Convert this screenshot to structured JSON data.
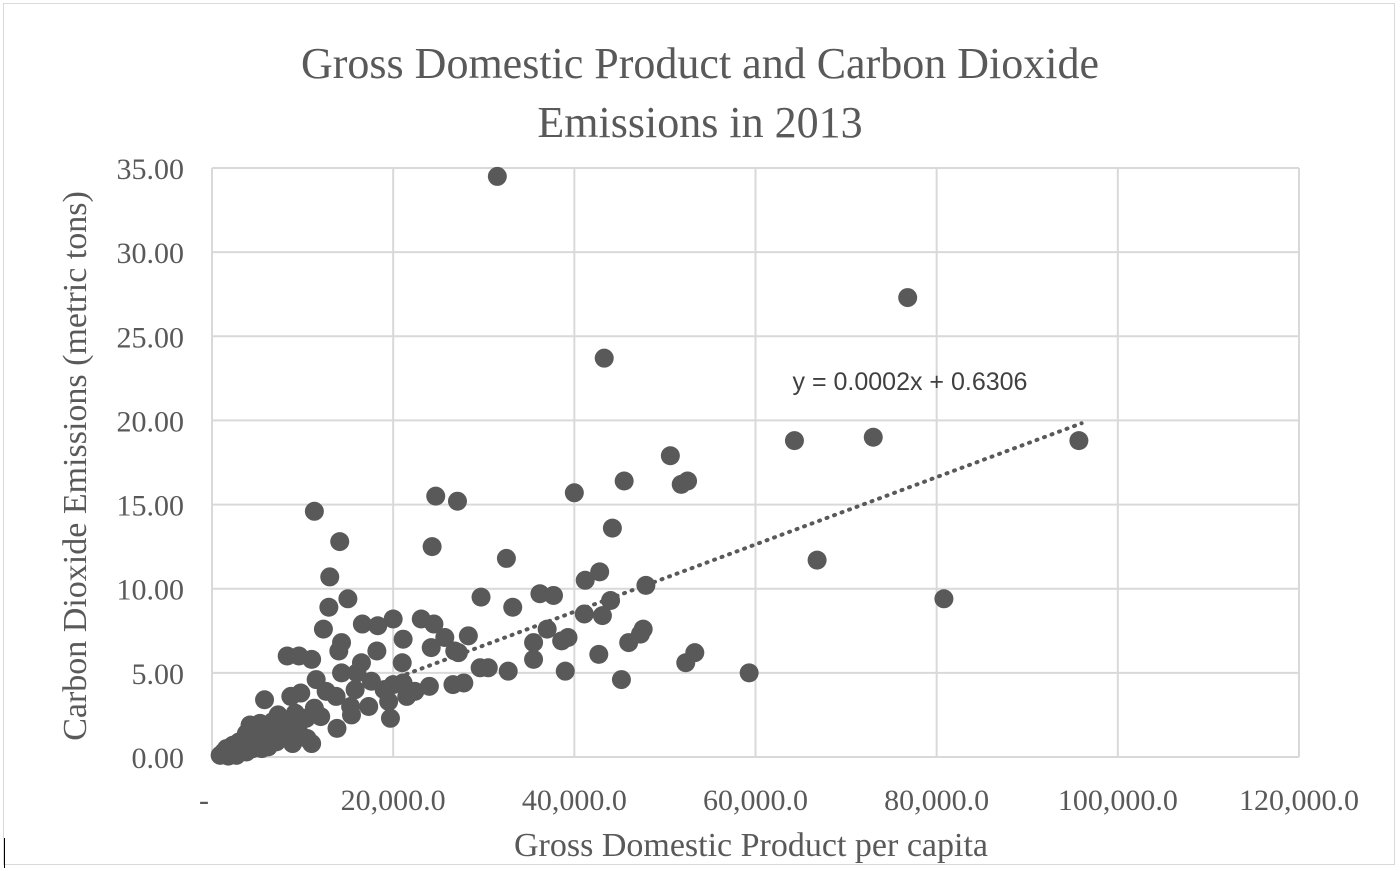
{
  "chart_data": {
    "type": "scatter",
    "title_line1": "Gross Domestic Product and Carbon Dioxide",
    "title_line2": "Emissions in 2013",
    "xlabel": "Gross Domestic Product per capita",
    "ylabel": "Carbon Dioxide Emissions (metric tons)",
    "xlim": [
      0,
      120000
    ],
    "ylim": [
      0,
      35
    ],
    "x_ticks": [
      0,
      20000,
      40000,
      60000,
      80000,
      100000,
      120000
    ],
    "x_tick_labels": [
      "-",
      "20,000.0",
      "40,000.0",
      "60,000.0",
      "80,000.0",
      "100,000.0",
      "120,000.0"
    ],
    "y_ticks": [
      0,
      5,
      10,
      15,
      20,
      25,
      30,
      35
    ],
    "y_tick_labels": [
      "0.00",
      "5.00",
      "10.00",
      "15.00",
      "20.00",
      "25.00",
      "30.00",
      "35.00"
    ],
    "grid": true,
    "legend": "none",
    "marker_color": "#595959",
    "trendline": {
      "equation": "y = 0.0002x + 0.6306",
      "slope": 0.0002,
      "intercept": 0.6306,
      "x_range": [
        19000,
        96000
      ],
      "style": "dotted"
    },
    "points": [
      [
        31500,
        34.5
      ],
      [
        76800,
        27.3
      ],
      [
        43300,
        23.7
      ],
      [
        95700,
        18.8
      ],
      [
        64300,
        18.8
      ],
      [
        73000,
        19.0
      ],
      [
        50600,
        17.9
      ],
      [
        45500,
        16.4
      ],
      [
        52500,
        16.4
      ],
      [
        51800,
        16.2
      ],
      [
        40000,
        15.7
      ],
      [
        24700,
        15.5
      ],
      [
        27100,
        15.2
      ],
      [
        11300,
        14.6
      ],
      [
        44200,
        13.6
      ],
      [
        14100,
        12.8
      ],
      [
        24300,
        12.5
      ],
      [
        32500,
        11.8
      ],
      [
        66800,
        11.7
      ],
      [
        42800,
        11.0
      ],
      [
        41200,
        10.5
      ],
      [
        13000,
        10.7
      ],
      [
        47900,
        10.2
      ],
      [
        36200,
        9.7
      ],
      [
        37700,
        9.6
      ],
      [
        80800,
        9.4
      ],
      [
        15000,
        9.4
      ],
      [
        29700,
        9.5
      ],
      [
        44000,
        9.3
      ],
      [
        12900,
        8.9
      ],
      [
        33200,
        8.9
      ],
      [
        43100,
        8.4
      ],
      [
        41100,
        8.5
      ],
      [
        20000,
        8.2
      ],
      [
        23100,
        8.2
      ],
      [
        24500,
        7.9
      ],
      [
        16600,
        7.9
      ],
      [
        18300,
        7.8
      ],
      [
        12300,
        7.6
      ],
      [
        47600,
        7.6
      ],
      [
        47300,
        7.3
      ],
      [
        37000,
        7.6
      ],
      [
        28300,
        7.2
      ],
      [
        21100,
        7.0
      ],
      [
        25700,
        7.1
      ],
      [
        39300,
        7.1
      ],
      [
        38600,
        6.9
      ],
      [
        35500,
        6.8
      ],
      [
        14300,
        6.8
      ],
      [
        46000,
        6.8
      ],
      [
        24200,
        6.5
      ],
      [
        18200,
        6.3
      ],
      [
        26800,
        6.3
      ],
      [
        27200,
        6.2
      ],
      [
        14000,
        6.3
      ],
      [
        53300,
        6.2
      ],
      [
        42700,
        6.1
      ],
      [
        9600,
        6.0
      ],
      [
        8300,
        6.0
      ],
      [
        11000,
        5.8
      ],
      [
        16500,
        5.6
      ],
      [
        21000,
        5.6
      ],
      [
        52300,
        5.6
      ],
      [
        35500,
        5.8
      ],
      [
        29600,
        5.3
      ],
      [
        30500,
        5.3
      ],
      [
        32700,
        5.1
      ],
      [
        39000,
        5.1
      ],
      [
        59300,
        5.0
      ],
      [
        16000,
        5.0
      ],
      [
        14300,
        5.0
      ],
      [
        11500,
        4.6
      ],
      [
        45200,
        4.6
      ],
      [
        21100,
        4.4
      ],
      [
        20000,
        4.3
      ],
      [
        17600,
        4.5
      ],
      [
        26600,
        4.3
      ],
      [
        27800,
        4.4
      ],
      [
        19000,
        4.0
      ],
      [
        22400,
        3.9
      ],
      [
        24000,
        4.2
      ],
      [
        15800,
        4.0
      ],
      [
        12600,
        3.9
      ],
      [
        9800,
        3.8
      ],
      [
        8700,
        3.6
      ],
      [
        13700,
        3.6
      ],
      [
        21500,
        3.6
      ],
      [
        19500,
        3.3
      ],
      [
        17300,
        3.0
      ],
      [
        15300,
        3.0
      ],
      [
        5800,
        3.4
      ],
      [
        11300,
        2.9
      ],
      [
        9200,
        2.6
      ],
      [
        7300,
        2.5
      ],
      [
        15400,
        2.5
      ],
      [
        19700,
        2.3
      ],
      [
        12000,
        2.4
      ],
      [
        10400,
        2.3
      ],
      [
        8600,
        2.2
      ],
      [
        6700,
        2.1
      ],
      [
        5300,
        2.0
      ],
      [
        4200,
        1.9
      ],
      [
        7900,
        1.8
      ],
      [
        13800,
        1.7
      ],
      [
        9500,
        1.6
      ],
      [
        6400,
        1.5
      ],
      [
        3800,
        1.4
      ],
      [
        5900,
        1.3
      ],
      [
        8200,
        1.2
      ],
      [
        10500,
        1.1
      ],
      [
        4600,
        1.0
      ],
      [
        3000,
        0.9
      ],
      [
        7100,
        0.9
      ],
      [
        8900,
        0.8
      ],
      [
        11000,
        0.8
      ],
      [
        2300,
        0.7
      ],
      [
        5400,
        0.7
      ],
      [
        3600,
        0.6
      ],
      [
        6200,
        0.6
      ],
      [
        1600,
        0.5
      ],
      [
        4500,
        0.5
      ],
      [
        5500,
        0.5
      ],
      [
        2800,
        0.4
      ],
      [
        3800,
        0.3
      ],
      [
        1300,
        0.3
      ],
      [
        2100,
        0.2
      ],
      [
        900,
        0.1
      ],
      [
        2700,
        0.1
      ],
      [
        1800,
        0.05
      ]
    ]
  }
}
